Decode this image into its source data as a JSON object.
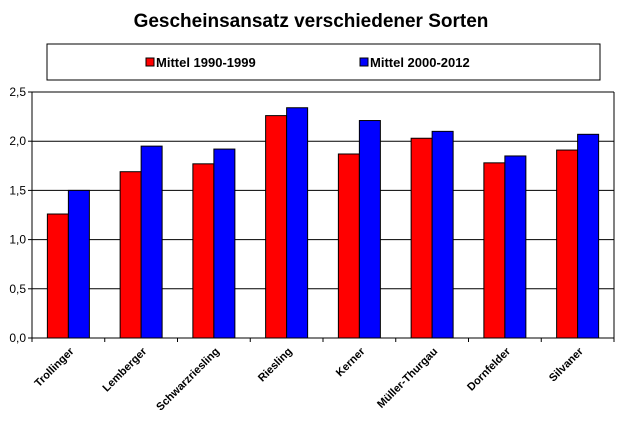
{
  "chart_data": {
    "type": "bar",
    "title": "Gescheinsansatz verschiedener Sorten",
    "xlabel": "",
    "ylabel": "",
    "categories": [
      "Trollinger",
      "Lemberger",
      "Schwarzriesling",
      "Riesling",
      "Kerner",
      "Müller-Thurgau",
      "Dornfelder",
      "Silvaner"
    ],
    "series": [
      {
        "name": "Mittel 1990-1999",
        "color": "#ff0000",
        "values": [
          1.26,
          1.69,
          1.77,
          2.26,
          1.87,
          2.03,
          1.78,
          1.91
        ]
      },
      {
        "name": "Mittel 2000-2012",
        "color": "#0000ff",
        "values": [
          1.5,
          1.95,
          1.92,
          2.34,
          2.21,
          2.1,
          1.85,
          2.07
        ]
      }
    ],
    "ylim": [
      0,
      2.5
    ],
    "yticks": [
      "0,0",
      "0,5",
      "1,0",
      "1,5",
      "2,0",
      "2,5"
    ],
    "grid": true,
    "legend_position": "top"
  }
}
